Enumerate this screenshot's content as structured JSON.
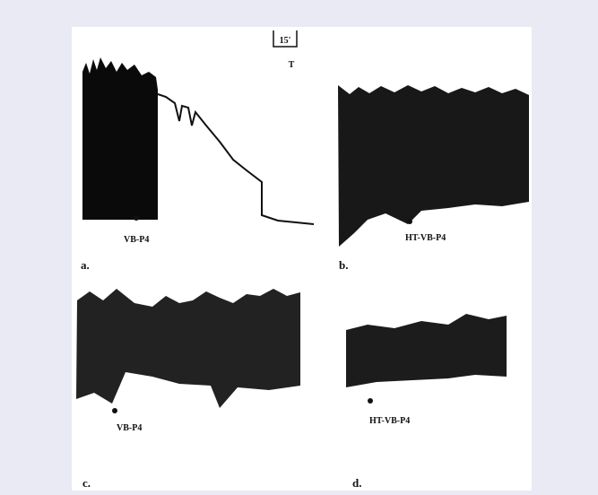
{
  "scale": {
    "time": "15'",
    "label": "T"
  },
  "panels": [
    {
      "label": "a.",
      "marker": "VB-P4"
    },
    {
      "label": "b.",
      "marker": "HT-VB-P4"
    },
    {
      "label": "c.",
      "marker": "VB-P4"
    },
    {
      "label": "d.",
      "marker": "HT-VB-P4"
    }
  ]
}
